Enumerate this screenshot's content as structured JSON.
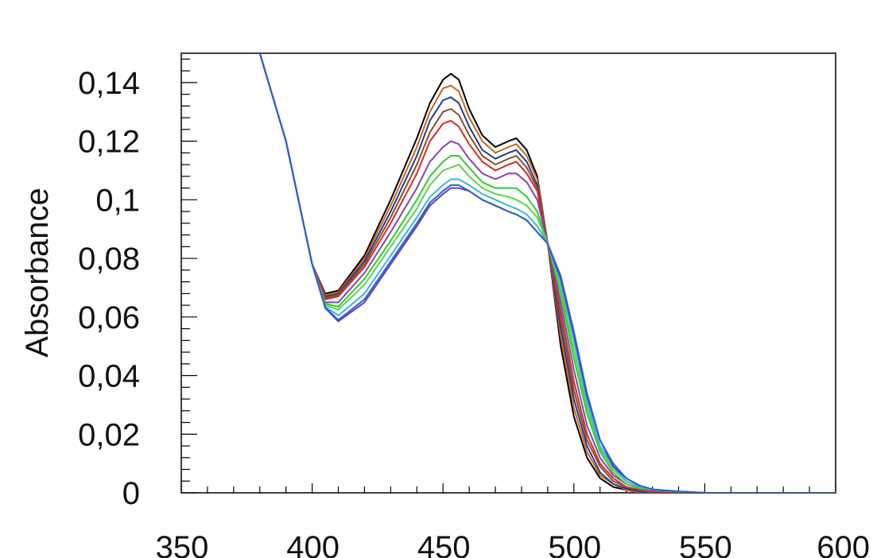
{
  "chart_data": {
    "type": "line",
    "title": "",
    "xlabel": "",
    "ylabel": "Absorbance",
    "xlim": [
      350,
      600
    ],
    "ylim": [
      0,
      0.15
    ],
    "x_ticks": [
      350,
      400,
      450,
      500,
      550,
      600
    ],
    "x_tick_labels": [
      "350",
      "400",
      "450",
      "500",
      "550",
      "600"
    ],
    "y_ticks": [
      0,
      0.02,
      0.04,
      0.06,
      0.08,
      0.1,
      0.12,
      0.14
    ],
    "y_tick_labels": [
      "0",
      "0,02",
      "0,04",
      "0,06",
      "0,08",
      "0,1",
      "0,12",
      "0,14"
    ],
    "grid": false,
    "legend": "none",
    "series": [
      {
        "color": "#000000",
        "x": [
          380,
          390,
          400,
          405,
          410,
          420,
          430,
          440,
          445,
          450,
          453,
          456,
          460,
          465,
          470,
          475,
          478,
          482,
          486,
          490,
          495,
          500,
          505,
          510,
          515,
          520,
          525,
          530,
          540,
          550,
          560,
          580,
          600
        ],
        "y": [
          0.15,
          0.12,
          0.078,
          0.068,
          0.069,
          0.081,
          0.1,
          0.121,
          0.133,
          0.141,
          0.143,
          0.141,
          0.131,
          0.122,
          0.118,
          0.12,
          0.121,
          0.117,
          0.108,
          0.085,
          0.05,
          0.026,
          0.012,
          0.005,
          0.002,
          0.001,
          0.0,
          0.0,
          0.0,
          0.0,
          0.0,
          0.0,
          0.0
        ]
      },
      {
        "color": "#c8651b",
        "x": [
          380,
          390,
          400,
          405,
          410,
          420,
          430,
          440,
          445,
          450,
          453,
          456,
          460,
          465,
          470,
          475,
          478,
          482,
          486,
          490,
          495,
          500,
          505,
          510,
          515,
          520,
          525,
          530,
          540,
          550,
          560,
          580,
          600
        ],
        "y": [
          0.15,
          0.12,
          0.078,
          0.0675,
          0.0685,
          0.08,
          0.098,
          0.118,
          0.13,
          0.138,
          0.139,
          0.137,
          0.128,
          0.12,
          0.116,
          0.118,
          0.119,
          0.115,
          0.107,
          0.085,
          0.053,
          0.029,
          0.014,
          0.006,
          0.003,
          0.001,
          0.0,
          0.0,
          0.0,
          0.0,
          0.0,
          0.0,
          0.0
        ]
      },
      {
        "color": "#1f3e8c",
        "x": [
          380,
          390,
          400,
          405,
          410,
          420,
          430,
          440,
          445,
          450,
          453,
          456,
          460,
          465,
          470,
          475,
          478,
          482,
          486,
          490,
          495,
          500,
          505,
          510,
          515,
          520,
          525,
          530,
          540,
          550,
          560,
          580,
          600
        ],
        "y": [
          0.15,
          0.12,
          0.078,
          0.067,
          0.068,
          0.079,
          0.096,
          0.115,
          0.127,
          0.134,
          0.135,
          0.133,
          0.125,
          0.117,
          0.114,
          0.116,
          0.117,
          0.113,
          0.105,
          0.085,
          0.056,
          0.032,
          0.016,
          0.007,
          0.003,
          0.0015,
          0.0005,
          0.0,
          0.0,
          0.0,
          0.0,
          0.0,
          0.0
        ]
      },
      {
        "color": "#8a4e2b",
        "x": [
          380,
          390,
          400,
          405,
          410,
          420,
          430,
          440,
          445,
          450,
          453,
          456,
          460,
          465,
          470,
          475,
          478,
          482,
          486,
          490,
          495,
          500,
          505,
          510,
          515,
          520,
          525,
          530,
          540,
          550,
          560,
          580,
          600
        ],
        "y": [
          0.15,
          0.12,
          0.078,
          0.0665,
          0.0675,
          0.078,
          0.094,
          0.112,
          0.123,
          0.13,
          0.131,
          0.129,
          0.122,
          0.115,
          0.112,
          0.114,
          0.115,
          0.111,
          0.104,
          0.085,
          0.059,
          0.035,
          0.018,
          0.009,
          0.004,
          0.002,
          0.001,
          0.0,
          0.0,
          0.0,
          0.0,
          0.0,
          0.0
        ]
      },
      {
        "color": "#d62a2a",
        "x": [
          380,
          390,
          400,
          405,
          410,
          420,
          430,
          440,
          445,
          450,
          453,
          456,
          460,
          465,
          470,
          475,
          478,
          482,
          486,
          490,
          495,
          500,
          505,
          510,
          515,
          520,
          525,
          530,
          540,
          550,
          560,
          580,
          600
        ],
        "y": [
          0.15,
          0.12,
          0.078,
          0.066,
          0.067,
          0.077,
          0.092,
          0.109,
          0.12,
          0.126,
          0.127,
          0.125,
          0.119,
          0.113,
          0.11,
          0.112,
          0.113,
          0.109,
          0.103,
          0.085,
          0.062,
          0.038,
          0.02,
          0.01,
          0.005,
          0.002,
          0.001,
          0.0005,
          0.0,
          0.0,
          0.0,
          0.0,
          0.0
        ]
      },
      {
        "color": "#8e3fb0",
        "x": [
          380,
          390,
          400,
          405,
          410,
          420,
          430,
          440,
          445,
          450,
          453,
          456,
          460,
          465,
          470,
          475,
          478,
          482,
          486,
          490,
          495,
          500,
          505,
          510,
          515,
          520,
          525,
          530,
          540,
          550,
          560,
          580,
          600
        ],
        "y": [
          0.15,
          0.12,
          0.078,
          0.065,
          0.065,
          0.075,
          0.089,
          0.104,
          0.113,
          0.118,
          0.12,
          0.119,
          0.114,
          0.109,
          0.107,
          0.109,
          0.109,
          0.106,
          0.1,
          0.085,
          0.065,
          0.042,
          0.023,
          0.012,
          0.006,
          0.003,
          0.0015,
          0.0008,
          0.0003,
          0.0,
          0.0,
          0.0,
          0.0
        ]
      },
      {
        "color": "#2ecc2e",
        "x": [
          380,
          390,
          400,
          405,
          410,
          420,
          430,
          440,
          445,
          450,
          453,
          456,
          460,
          465,
          470,
          475,
          478,
          482,
          486,
          490,
          495,
          500,
          505,
          510,
          515,
          520,
          525,
          530,
          540,
          550,
          560,
          580,
          600
        ],
        "y": [
          0.15,
          0.12,
          0.078,
          0.0645,
          0.0635,
          0.073,
          0.086,
          0.1,
          0.108,
          0.113,
          0.115,
          0.115,
          0.111,
          0.106,
          0.104,
          0.104,
          0.104,
          0.101,
          0.096,
          0.085,
          0.068,
          0.046,
          0.027,
          0.014,
          0.007,
          0.003,
          0.0015,
          0.001,
          0.0003,
          0.0,
          0.0,
          0.0,
          0.0
        ]
      },
      {
        "color": "#59d63f",
        "x": [
          380,
          390,
          400,
          405,
          410,
          420,
          430,
          440,
          445,
          450,
          453,
          456,
          460,
          465,
          470,
          475,
          478,
          482,
          486,
          490,
          495,
          500,
          505,
          510,
          515,
          520,
          525,
          530,
          540,
          550,
          560,
          580,
          600
        ],
        "y": [
          0.15,
          0.12,
          0.078,
          0.064,
          0.0625,
          0.071,
          0.084,
          0.097,
          0.105,
          0.11,
          0.111,
          0.112,
          0.108,
          0.104,
          0.102,
          0.101,
          0.1,
          0.098,
          0.094,
          0.085,
          0.07,
          0.049,
          0.029,
          0.015,
          0.008,
          0.004,
          0.002,
          0.001,
          0.0005,
          0.0,
          0.0,
          0.0,
          0.0
        ]
      },
      {
        "color": "#37b8d6",
        "x": [
          380,
          390,
          400,
          405,
          410,
          420,
          430,
          440,
          445,
          450,
          453,
          456,
          460,
          465,
          470,
          475,
          478,
          482,
          486,
          490,
          495,
          500,
          505,
          510,
          515,
          520,
          525,
          530,
          540,
          550,
          560,
          580,
          600
        ],
        "y": [
          0.15,
          0.12,
          0.078,
          0.0635,
          0.0605,
          0.068,
          0.081,
          0.094,
          0.101,
          0.105,
          0.107,
          0.107,
          0.105,
          0.102,
          0.1,
          0.098,
          0.097,
          0.095,
          0.091,
          0.085,
          0.072,
          0.052,
          0.031,
          0.016,
          0.009,
          0.004,
          0.002,
          0.001,
          0.0005,
          0.0,
          0.0,
          0.0,
          0.0
        ]
      },
      {
        "color": "#5a3fc8",
        "x": [
          380,
          390,
          400,
          405,
          410,
          420,
          430,
          440,
          445,
          450,
          453,
          456,
          460,
          465,
          470,
          475,
          478,
          482,
          486,
          490,
          495,
          500,
          505,
          510,
          515,
          520,
          525,
          530,
          540,
          550,
          560,
          580,
          600
        ],
        "y": [
          0.15,
          0.12,
          0.078,
          0.063,
          0.0585,
          0.065,
          0.078,
          0.091,
          0.098,
          0.102,
          0.104,
          0.104,
          0.103,
          0.1,
          0.098,
          0.096,
          0.095,
          0.093,
          0.089,
          0.085,
          0.073,
          0.054,
          0.033,
          0.018,
          0.009,
          0.005,
          0.0025,
          0.0012,
          0.0005,
          0.0,
          0.0,
          0.0,
          0.0
        ]
      },
      {
        "color": "#2a5fd6",
        "x": [
          380,
          390,
          400,
          405,
          410,
          420,
          430,
          440,
          445,
          450,
          453,
          456,
          460,
          465,
          470,
          475,
          478,
          482,
          486,
          490,
          495,
          500,
          505,
          510,
          515,
          520,
          525,
          530,
          540,
          550,
          560,
          580,
          600
        ],
        "y": [
          0.15,
          0.12,
          0.078,
          0.0632,
          0.059,
          0.066,
          0.079,
          0.092,
          0.099,
          0.103,
          0.105,
          0.105,
          0.103,
          0.1,
          0.098,
          0.096,
          0.095,
          0.093,
          0.089,
          0.085,
          0.074,
          0.055,
          0.034,
          0.018,
          0.01,
          0.005,
          0.0025,
          0.0012,
          0.0005,
          0.0,
          0.0,
          0.0,
          0.0
        ]
      }
    ]
  }
}
